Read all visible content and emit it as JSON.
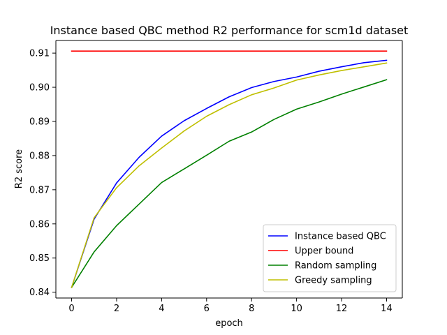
{
  "chart_data": {
    "type": "line",
    "title": "Instance based QBC method R2 performance for scm1d dataset",
    "xlabel": "epoch",
    "ylabel": "R2 score",
    "x": [
      0,
      1,
      2,
      3,
      4,
      5,
      6,
      7,
      8,
      9,
      10,
      11,
      12,
      13,
      14
    ],
    "xlim": [
      -0.7,
      14.7
    ],
    "ylim": [
      0.8383,
      0.9137
    ],
    "xticks": [
      0,
      2,
      4,
      6,
      8,
      10,
      12,
      14
    ],
    "yticks": [
      0.84,
      0.85,
      0.86,
      0.87,
      0.88,
      0.89,
      0.9,
      0.91
    ],
    "xtick_labels": [
      "0",
      "2",
      "4",
      "6",
      "8",
      "10",
      "12",
      "14"
    ],
    "ytick_labels": [
      "0.84",
      "0.85",
      "0.86",
      "0.87",
      "0.88",
      "0.89",
      "0.90",
      "0.91"
    ],
    "grid": false,
    "legend_position": "lower-right",
    "series": [
      {
        "name": "Instance based QBC",
        "color": "#0000ff",
        "values": [
          0.8414,
          0.8614,
          0.872,
          0.8795,
          0.8857,
          0.8902,
          0.8938,
          0.8972,
          0.8999,
          0.9017,
          0.903,
          0.9047,
          0.906,
          0.9072,
          0.9079
        ]
      },
      {
        "name": "Upper bound",
        "color": "#ff0000",
        "values": [
          0.9106,
          0.9106,
          0.9106,
          0.9106,
          0.9106,
          0.9106,
          0.9106,
          0.9106,
          0.9106,
          0.9106,
          0.9106,
          0.9106,
          0.9106,
          0.9106,
          0.9106
        ]
      },
      {
        "name": "Random sampling",
        "color": "#008000",
        "values": [
          0.8414,
          0.8518,
          0.8595,
          0.8658,
          0.8721,
          0.8761,
          0.8801,
          0.8842,
          0.8869,
          0.8906,
          0.8936,
          0.8957,
          0.898,
          0.9001,
          0.9022
        ]
      },
      {
        "name": "Greedy sampling",
        "color": "#bfbf00",
        "values": [
          0.8414,
          0.8618,
          0.8706,
          0.877,
          0.8822,
          0.8872,
          0.8915,
          0.8949,
          0.8978,
          0.8998,
          0.9021,
          0.9036,
          0.9049,
          0.906,
          0.9071
        ]
      }
    ]
  }
}
